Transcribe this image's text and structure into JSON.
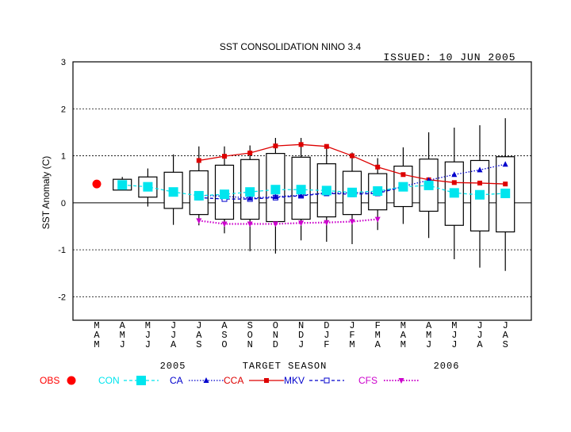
{
  "chart_data": {
    "type": "box",
    "title": "SST CONSOLIDATION NINO 3.4",
    "issued": "ISSUED: 10 JUN 2005",
    "ylabel": "SST Anomaly (C)",
    "ylim": [
      -2.5,
      3.0
    ],
    "yticks": [
      3,
      2,
      1,
      0,
      -1,
      -2
    ],
    "grid": "dashed horizontal",
    "seasons": [
      [
        "M",
        "A",
        "M"
      ],
      [
        "A",
        "M",
        "J"
      ],
      [
        "M",
        "J",
        "J"
      ],
      [
        "J",
        "J",
        "A"
      ],
      [
        "J",
        "A",
        "S"
      ],
      [
        "A",
        "S",
        "O"
      ],
      [
        "S",
        "O",
        "N"
      ],
      [
        "O",
        "N",
        "D"
      ],
      [
        "N",
        "D",
        "J"
      ],
      [
        "D",
        "J",
        "F"
      ],
      [
        "J",
        "F",
        "M"
      ],
      [
        "F",
        "M",
        "A"
      ],
      [
        "M",
        "A",
        "M"
      ],
      [
        "A",
        "M",
        "J"
      ],
      [
        "M",
        "J",
        "J"
      ],
      [
        "J",
        "J",
        "A"
      ],
      [
        "J",
        "A",
        "S"
      ]
    ],
    "under_labels": {
      "year_left": "2005",
      "center": "TARGET SEASON",
      "year_right": "2006"
    },
    "boxes": [
      {
        "i": 1,
        "lo": 0.27,
        "q1": 0.27,
        "q3": 0.5,
        "hi": 0.55
      },
      {
        "i": 2,
        "lo": -0.08,
        "q1": 0.12,
        "q3": 0.55,
        "hi": 0.73
      },
      {
        "i": 3,
        "lo": -0.47,
        "q1": -0.12,
        "q3": 0.65,
        "hi": 1.03
      },
      {
        "i": 4,
        "lo": -0.48,
        "q1": -0.25,
        "q3": 0.68,
        "hi": 1.2
      },
      {
        "i": 5,
        "lo": -0.65,
        "q1": -0.35,
        "q3": 0.8,
        "hi": 1.2
      },
      {
        "i": 6,
        "lo": -1.03,
        "q1": -0.35,
        "q3": 0.92,
        "hi": 1.22
      },
      {
        "i": 7,
        "lo": -1.08,
        "q1": -0.4,
        "q3": 1.05,
        "hi": 1.38
      },
      {
        "i": 8,
        "lo": -0.8,
        "q1": -0.35,
        "q3": 0.97,
        "hi": 1.38
      },
      {
        "i": 9,
        "lo": -0.83,
        "q1": -0.3,
        "q3": 0.83,
        "hi": 1.2
      },
      {
        "i": 10,
        "lo": -0.88,
        "q1": -0.25,
        "q3": 0.67,
        "hi": 1.07
      },
      {
        "i": 11,
        "lo": -0.58,
        "q1": -0.15,
        "q3": 0.62,
        "hi": 0.95
      },
      {
        "i": 12,
        "lo": -0.45,
        "q1": -0.08,
        "q3": 0.78,
        "hi": 1.18
      },
      {
        "i": 13,
        "lo": -0.75,
        "q1": -0.18,
        "q3": 0.93,
        "hi": 1.5
      },
      {
        "i": 14,
        "lo": -1.2,
        "q1": -0.48,
        "q3": 0.87,
        "hi": 1.6
      },
      {
        "i": 15,
        "lo": -1.38,
        "q1": -0.6,
        "q3": 0.9,
        "hi": 1.65
      },
      {
        "i": 16,
        "lo": -1.45,
        "q1": -0.62,
        "q3": 0.98,
        "hi": 1.8
      }
    ],
    "series": [
      {
        "name": "OBS",
        "color": "#ff0000",
        "marker": "dot",
        "line": "none",
        "points": [
          [
            0,
            0.4
          ]
        ]
      },
      {
        "name": "CON",
        "color": "#00e5ee",
        "marker": "square",
        "line": "dashed",
        "points": [
          [
            1,
            0.38
          ],
          [
            2,
            0.34
          ],
          [
            3,
            0.23
          ],
          [
            4,
            0.15
          ],
          [
            5,
            0.18
          ],
          [
            6,
            0.23
          ],
          [
            7,
            0.28
          ],
          [
            8,
            0.28
          ],
          [
            9,
            0.26
          ],
          [
            10,
            0.22
          ],
          [
            11,
            0.25
          ],
          [
            12,
            0.34
          ],
          [
            13,
            0.37
          ],
          [
            14,
            0.21
          ],
          [
            15,
            0.17
          ],
          [
            16,
            0.2
          ]
        ]
      },
      {
        "name": "CA",
        "color": "#0000cc",
        "marker": "triangle",
        "line": "dotted",
        "points": [
          [
            4,
            0.16
          ],
          [
            5,
            0.14
          ],
          [
            6,
            0.1
          ],
          [
            7,
            0.13
          ],
          [
            8,
            0.16
          ],
          [
            9,
            0.21
          ],
          [
            10,
            0.21
          ],
          [
            11,
            0.22
          ],
          [
            12,
            0.35
          ],
          [
            13,
            0.48
          ],
          [
            14,
            0.6
          ],
          [
            15,
            0.7
          ],
          [
            16,
            0.82
          ]
        ]
      },
      {
        "name": "CCA",
        "color": "#dd0000",
        "marker": "square",
        "line": "solid",
        "points": [
          [
            4,
            0.9
          ],
          [
            5,
            0.99
          ],
          [
            6,
            1.06
          ],
          [
            7,
            1.21
          ],
          [
            8,
            1.24
          ],
          [
            9,
            1.2
          ],
          [
            10,
            1.0
          ],
          [
            11,
            0.76
          ],
          [
            12,
            0.6
          ],
          [
            13,
            0.49
          ],
          [
            14,
            0.43
          ],
          [
            15,
            0.42
          ],
          [
            16,
            0.4
          ]
        ]
      },
      {
        "name": "MKV",
        "color": "#0000cc",
        "marker": "open-square",
        "line": "dashed",
        "points": [
          [
            4,
            0.11
          ],
          [
            5,
            0.08
          ],
          [
            6,
            0.08
          ],
          [
            7,
            0.11
          ],
          [
            8,
            0.15
          ],
          [
            9,
            0.2
          ],
          [
            10,
            0.18
          ],
          [
            11,
            0.2
          ],
          [
            12,
            0.34
          ]
        ]
      },
      {
        "name": "CFS",
        "color": "#cc00cc",
        "marker": "triangle-down",
        "line": "dotted",
        "points": [
          [
            4,
            -0.38
          ],
          [
            5,
            -0.45
          ],
          [
            6,
            -0.45
          ],
          [
            7,
            -0.45
          ],
          [
            8,
            -0.43
          ],
          [
            9,
            -0.42
          ],
          [
            10,
            -0.4
          ],
          [
            11,
            -0.35
          ]
        ]
      }
    ]
  }
}
